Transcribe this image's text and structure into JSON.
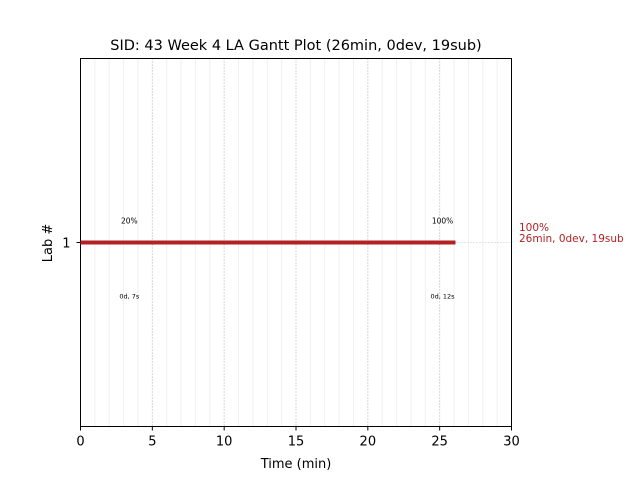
{
  "chart_data": {
    "type": "gantt",
    "title": "SID: 43 Week 4 LA Gantt Plot (26min, 0dev, 19sub)",
    "xlabel": "Time (min)",
    "ylabel": "Lab #",
    "xlim": [
      0,
      30
    ],
    "ylim": [
      0,
      2
    ],
    "xticks": [
      0,
      5,
      10,
      15,
      20,
      25,
      30
    ],
    "xticklabels": [
      "0",
      "5",
      "10",
      "15",
      "20",
      "25",
      "30"
    ],
    "minor_xticks": [
      1,
      2,
      3,
      4,
      6,
      7,
      8,
      9,
      11,
      12,
      13,
      14,
      16,
      17,
      18,
      19,
      21,
      22,
      23,
      24,
      26,
      27,
      28,
      29
    ],
    "yticks": [
      1
    ],
    "yticklabels": [
      "1"
    ],
    "grid": true,
    "bars": [
      {
        "lab": 1,
        "start": 0,
        "end": 26.1,
        "color": "#b22222"
      }
    ],
    "bar_annotations": [
      {
        "x": 3.4,
        "above": "20%",
        "below": "0d, 7s"
      },
      {
        "x": 25.2,
        "above": "100%",
        "below": "0d, 12s"
      }
    ],
    "right_label": {
      "y": 1,
      "line1": "100%",
      "line2": "26min, 0dev, 19sub",
      "color": "#b22222"
    }
  }
}
